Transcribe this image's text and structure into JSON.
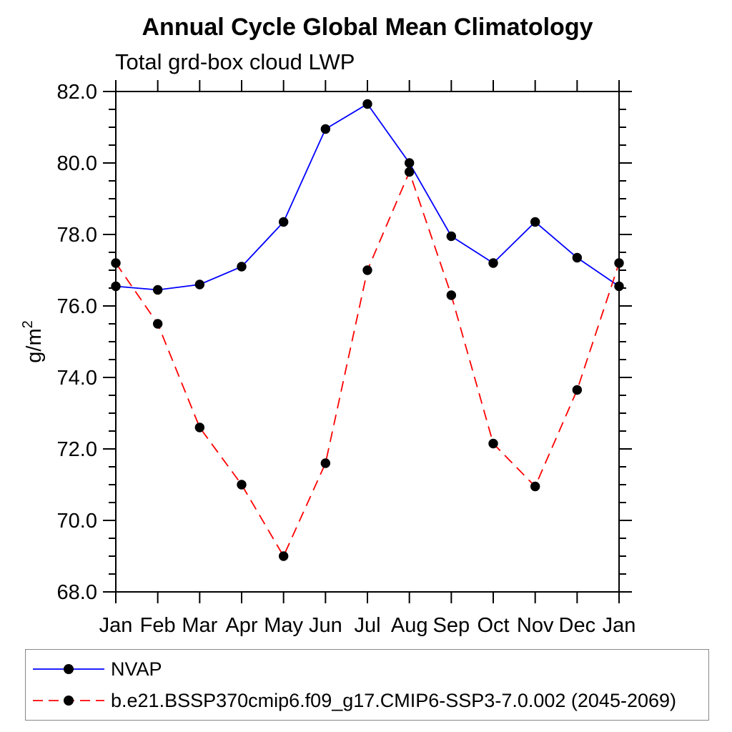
{
  "header": {
    "title": "Annual Cycle Global Mean Climatology",
    "subtitle": "Total grd-box cloud LWP"
  },
  "chart_data": {
    "type": "line",
    "categories": [
      "Jan",
      "Feb",
      "Mar",
      "Apr",
      "May",
      "Jun",
      "Jul",
      "Aug",
      "Sep",
      "Oct",
      "Nov",
      "Dec",
      "Jan"
    ],
    "series": [
      {
        "name": "NVAP",
        "color": "#0000ff",
        "style": "solid",
        "marker": "circle",
        "marker_color": "#000000",
        "values": [
          76.55,
          76.45,
          76.6,
          77.1,
          78.35,
          80.95,
          81.65,
          80.0,
          77.95,
          77.2,
          78.35,
          77.35,
          76.55
        ]
      },
      {
        "name": "b.e21.BSSP370cmip6.f09_g17.CMIP6-SSP3-7.0.002 (2045-2069)",
        "color": "#ff0000",
        "style": "dashed",
        "marker": "circle",
        "marker_color": "#000000",
        "values": [
          77.2,
          75.5,
          72.6,
          71.0,
          69.0,
          71.6,
          77.0,
          79.75,
          76.3,
          72.15,
          70.95,
          73.65,
          77.2
        ]
      }
    ],
    "xlabel": "",
    "ylabel": "g/m",
    "ylabel_exponent": "2",
    "ylim": [
      68.0,
      82.0
    ],
    "ytick_interval": 2.0,
    "ytick_minor_interval": 0.5,
    "ytick_labels": [
      "68.0",
      "70.0",
      "72.0",
      "74.0",
      "76.0",
      "78.0",
      "80.0",
      "82.0"
    ],
    "grid": false,
    "frame": "box",
    "legend_position": "bottom-left"
  }
}
